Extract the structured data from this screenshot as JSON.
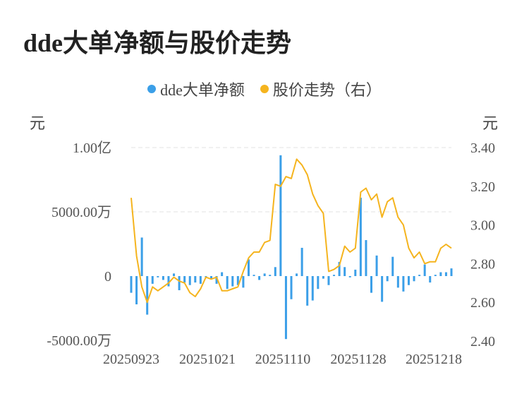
{
  "title": "dde大单净额与股价走势",
  "legend": [
    {
      "label": "dde大单净额",
      "color": "#3b9fe8"
    },
    {
      "label": "股价走势（右）",
      "color": "#f5b41e"
    }
  ],
  "left_unit": "元",
  "right_unit": "元",
  "chart_data": {
    "type": "bar+line",
    "x_tick_labels": [
      "20250923",
      "20251021",
      "20251110",
      "20251128",
      "20251218"
    ],
    "y_left_tick_labels": [
      "1.00亿",
      "5000.00万",
      "0",
      "-5000.00万"
    ],
    "y_left_ticks": [
      100000000,
      50000000,
      0,
      -50000000
    ],
    "y_left_range": [
      -50000000,
      100000000
    ],
    "y_right_tick_labels": [
      "3.40",
      "3.20",
      "3.00",
      "2.80",
      "2.60",
      "2.40"
    ],
    "y_right_ticks": [
      3.4,
      3.2,
      3.0,
      2.8,
      2.6,
      2.4
    ],
    "y_right_range": [
      2.4,
      3.4
    ],
    "grid": true,
    "series": [
      {
        "name": "dde大单净额",
        "type": "bar",
        "color": "#3b9fe8",
        "values": [
          -13000000,
          -22000000,
          30000000,
          -30000000,
          -6000000,
          -1000000,
          -3000000,
          -8000000,
          2000000,
          -11000000,
          -5000000,
          -7000000,
          -5000000,
          -6000000,
          -1000000,
          -2000000,
          -6000000,
          3000000,
          -10000000,
          -8000000,
          -7000000,
          -9000000,
          13000000,
          1000000,
          -3000000,
          2000000,
          1000000,
          7000000,
          94000000,
          -49000000,
          -18000000,
          2000000,
          22000000,
          -23000000,
          -19000000,
          -10000000,
          -2000000,
          -7000000,
          1000000,
          11000000,
          7000000,
          -1000000,
          5000000,
          61000000,
          28000000,
          -13000000,
          16000000,
          -20000000,
          -4000000,
          15000000,
          -9000000,
          -12000000,
          -7000000,
          -4000000,
          1000000,
          9000000,
          -5000000,
          1000000,
          3000000,
          3000000,
          6000000
        ]
      },
      {
        "name": "股价走势（右）",
        "type": "line",
        "color": "#f5b41e",
        "values": [
          3.14,
          2.84,
          2.68,
          2.6,
          2.68,
          2.66,
          2.68,
          2.7,
          2.73,
          2.71,
          2.7,
          2.65,
          2.63,
          2.67,
          2.73,
          2.72,
          2.73,
          2.66,
          2.66,
          2.67,
          2.68,
          2.76,
          2.83,
          2.86,
          2.86,
          2.91,
          2.92,
          3.21,
          3.2,
          3.25,
          3.24,
          3.34,
          3.31,
          3.26,
          3.16,
          3.1,
          3.06,
          2.76,
          2.77,
          2.79,
          2.89,
          2.86,
          2.88,
          3.17,
          3.19,
          3.13,
          3.16,
          3.04,
          3.12,
          3.14,
          3.04,
          3.0,
          2.88,
          2.83,
          2.86,
          2.8,
          2.81,
          2.81,
          2.88,
          2.9,
          2.88
        ]
      }
    ]
  }
}
